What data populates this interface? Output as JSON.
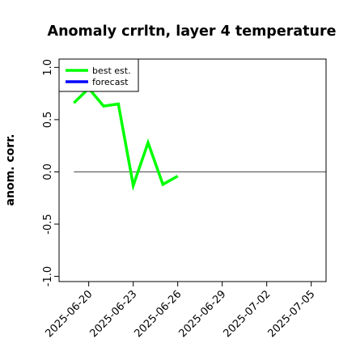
{
  "chart_data": {
    "type": "line",
    "title": "Anomaly crrltn, layer 4 temperature",
    "ylabel": "anom. corr.",
    "xlabel": "",
    "ylim": [
      -1.05,
      1.08
    ],
    "xlim": [
      "2025-06-18",
      "2025-07-06"
    ],
    "yticks": [
      "-1.0",
      "-0.5",
      "0.0",
      "0.5",
      "1.0"
    ],
    "ytick_values": [
      -1.0,
      -0.5,
      0.0,
      0.5,
      1.0
    ],
    "xticks": [
      "2025-06-20",
      "2025-06-23",
      "2025-06-26",
      "2025-06-29",
      "2025-07-02",
      "2025-07-05"
    ],
    "highlight_xtick": "2025-06-26",
    "highlight_color": "#228B22",
    "reference_line": {
      "y": 0.0,
      "from": "2025-06-19",
      "to": "2025-07-06",
      "color": "#555555"
    },
    "legend": {
      "position": "top-left",
      "entries": [
        "best est.",
        "forecast"
      ]
    },
    "series": [
      {
        "name": "best est.",
        "color": "#00ff00",
        "x": [
          "2025-06-19",
          "2025-06-20",
          "2025-06-21",
          "2025-06-22",
          "2025-06-23",
          "2025-06-24",
          "2025-06-25",
          "2025-06-26"
        ],
        "values": [
          0.66,
          0.8,
          0.63,
          0.65,
          -0.13,
          0.28,
          -0.12,
          -0.04
        ]
      },
      {
        "name": "forecast",
        "color": "#0000ff",
        "x": [],
        "values": []
      }
    ]
  }
}
